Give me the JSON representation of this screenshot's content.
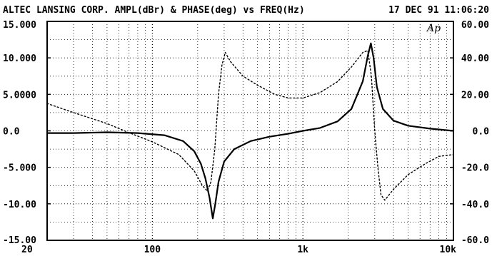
{
  "header": {
    "title": "ALTEC LANSING CORP. AMPL(dBr) & PHASE(deg) vs FREQ(Hz)",
    "timestamp": "17 DEC 91 11:06:20",
    "handwritten_mark": "Ap"
  },
  "chart_data": {
    "type": "line",
    "title": "ALTEC LANSING CORP. AMPL(dBr) & PHASE(deg) vs FREQ(Hz)",
    "x_scale": "log",
    "xlim": [
      20,
      10000
    ],
    "x_tick_labels": [
      {
        "value": 20,
        "label": "20"
      },
      {
        "value": 100,
        "label": "100"
      },
      {
        "value": 1000,
        "label": "1k"
      },
      {
        "value": 10000,
        "label": "10k"
      }
    ],
    "ylim_left": [
      -15,
      15
    ],
    "y_left_tick_labels": [
      "15.000",
      "10.000",
      "5.0000",
      "0.0",
      "-5.000",
      "-10.00",
      "-15.00"
    ],
    "y_left_ticks": [
      15,
      10,
      5,
      0,
      -5,
      -10,
      -15
    ],
    "ylim_right": [
      -60,
      60
    ],
    "y_right_tick_labels": [
      "60.00",
      "40.00",
      "20.00",
      "0.0",
      "-20.0",
      "-40.0",
      "-60.0"
    ],
    "y_right_ticks": [
      60,
      40,
      20,
      0,
      -20,
      -40,
      -60
    ],
    "grid": true,
    "series": [
      {
        "axis": "left",
        "style": "solid",
        "x": [
          20,
          30,
          50,
          80,
          120,
          160,
          190,
          210,
          225,
          240,
          252,
          262,
          275,
          300,
          350,
          450,
          600,
          800,
          1000,
          1300,
          1700,
          2100,
          2500,
          2700,
          2830,
          2950,
          3100,
          3400,
          4000,
          5000,
          7000,
          10000
        ],
        "y": [
          -0.3,
          -0.3,
          -0.2,
          -0.3,
          -0.6,
          -1.4,
          -2.8,
          -4.5,
          -6.5,
          -9.2,
          -12.0,
          -10.0,
          -7.0,
          -4.2,
          -2.5,
          -1.4,
          -0.8,
          -0.4,
          0.0,
          0.4,
          1.3,
          3.0,
          6.8,
          10.3,
          12.0,
          10.0,
          6.0,
          3.0,
          1.4,
          0.7,
          0.3,
          0.0
        ]
      },
      {
        "axis": "right",
        "style": "dashed",
        "x": [
          20,
          30,
          50,
          70,
          100,
          150,
          190,
          215,
          232,
          245,
          260,
          275,
          290,
          305,
          330,
          400,
          500,
          650,
          800,
          1000,
          1300,
          1700,
          2100,
          2500,
          2700,
          2850,
          3000,
          3150,
          3300,
          3500,
          4000,
          5000,
          6500,
          8000,
          10000
        ],
        "y": [
          15.0,
          10.0,
          4.0,
          -1.0,
          -6.0,
          -13.0,
          -22.0,
          -30.0,
          -33.0,
          -28.0,
          -10.0,
          20.0,
          36.0,
          43.0,
          38.0,
          30.0,
          25.0,
          20.0,
          18.0,
          18.0,
          21.0,
          27.0,
          35.0,
          43.0,
          44.0,
          30.0,
          0.0,
          -20.0,
          -35.0,
          -38.0,
          -32.0,
          -24.0,
          -18.0,
          -14.0,
          -13.0
        ]
      }
    ]
  }
}
